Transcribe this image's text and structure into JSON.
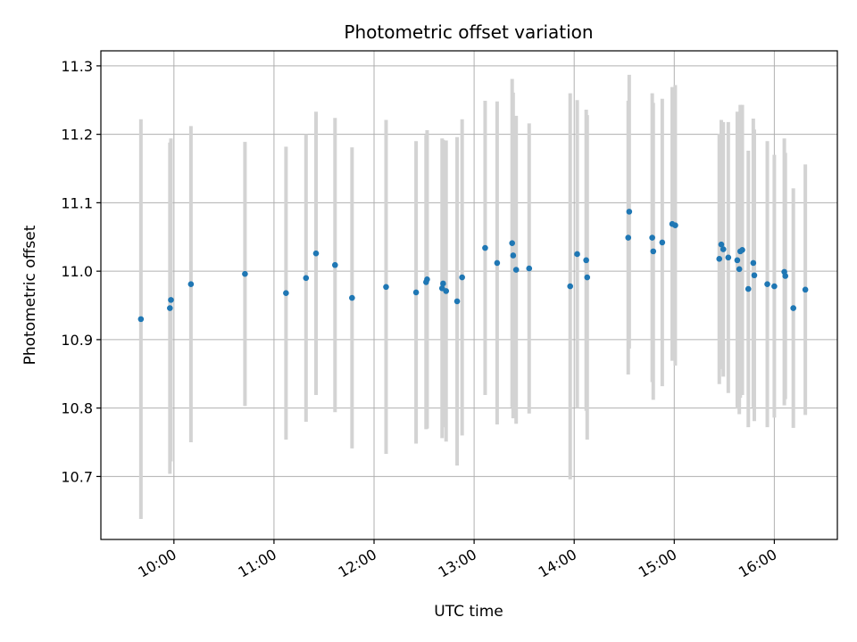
{
  "chart_data": {
    "type": "scatter",
    "title": "Photometric offset variation",
    "xlabel": "UTC time",
    "ylabel": "Photometric offset",
    "grid": true,
    "xlim_hours": [
      9.27,
      16.63
    ],
    "ylim": [
      10.608,
      11.322
    ],
    "x_ticks": [
      {
        "hour": 10,
        "label": "10:00"
      },
      {
        "hour": 11,
        "label": "11:00"
      },
      {
        "hour": 12,
        "label": "12:00"
      },
      {
        "hour": 13,
        "label": "13:00"
      },
      {
        "hour": 14,
        "label": "14:00"
      },
      {
        "hour": 15,
        "label": "15:00"
      },
      {
        "hour": 16,
        "label": "16:00"
      }
    ],
    "y_ticks": [
      {
        "value": 10.7,
        "label": "10.7"
      },
      {
        "value": 10.8,
        "label": "10.8"
      },
      {
        "value": 10.9,
        "label": "10.9"
      },
      {
        "value": 11.0,
        "label": "11.0"
      },
      {
        "value": 11.1,
        "label": "11.1"
      },
      {
        "value": 11.2,
        "label": "11.2"
      },
      {
        "value": 11.3,
        "label": "11.3"
      }
    ],
    "colors": {
      "point": "#1f77b4",
      "errorbar": "#d3d3d3",
      "grid": "#b0b0b0",
      "frame": "#000000"
    },
    "series": [
      {
        "name": "offset",
        "x": [
          9.67,
          9.96,
          9.97,
          10.17,
          10.71,
          11.12,
          11.32,
          11.42,
          11.61,
          11.78,
          12.12,
          12.42,
          12.52,
          12.53,
          12.68,
          12.69,
          12.72,
          12.83,
          12.88,
          13.11,
          13.23,
          13.38,
          13.39,
          13.42,
          13.55,
          13.96,
          14.03,
          14.12,
          14.13,
          14.54,
          14.55,
          14.78,
          14.79,
          14.88,
          14.98,
          15.01,
          15.45,
          15.47,
          15.49,
          15.54,
          15.63,
          15.65,
          15.66,
          15.68,
          15.74,
          15.79,
          15.8,
          15.93,
          16.0,
          16.1,
          16.11,
          16.19,
          16.31
        ],
        "y": [
          10.93,
          10.946,
          10.958,
          10.981,
          10.996,
          10.968,
          10.99,
          11.026,
          11.009,
          10.961,
          10.977,
          10.969,
          10.984,
          10.988,
          10.975,
          10.982,
          10.971,
          10.956,
          10.991,
          11.034,
          11.012,
          11.041,
          11.023,
          11.002,
          11.004,
          10.978,
          11.025,
          11.016,
          10.991,
          11.049,
          11.087,
          11.049,
          11.029,
          11.042,
          11.069,
          11.067,
          11.018,
          11.039,
          11.032,
          11.02,
          11.016,
          11.003,
          11.029,
          11.031,
          10.974,
          11.012,
          10.994,
          10.981,
          10.978,
          10.999,
          10.993,
          10.946,
          10.973
        ],
        "err": [
          0.292,
          0.242,
          0.236,
          0.231,
          0.193,
          0.214,
          0.21,
          0.207,
          0.215,
          0.22,
          0.244,
          0.221,
          0.215,
          0.218,
          0.219,
          0.21,
          0.22,
          0.24,
          0.231,
          0.215,
          0.236,
          0.24,
          0.238,
          0.225,
          0.212,
          0.282,
          0.225,
          0.22,
          0.237,
          0.2,
          0.2,
          0.211,
          0.217,
          0.21,
          0.2,
          0.205,
          0.183,
          0.182,
          0.186,
          0.198,
          0.217,
          0.212,
          0.214,
          0.212,
          0.202,
          0.211,
          0.213,
          0.209,
          0.192,
          0.195,
          0.18,
          0.175,
          0.183
        ]
      }
    ]
  }
}
